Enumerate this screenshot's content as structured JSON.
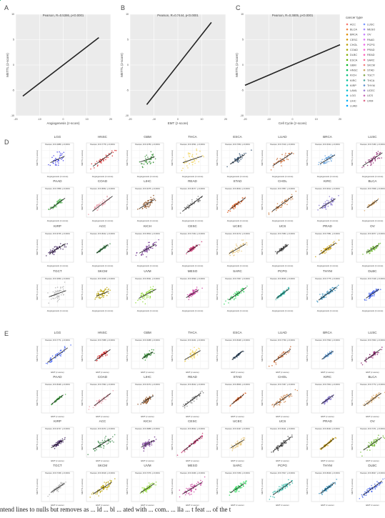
{
  "colors": {
    "ACC": "#f8766d",
    "BLCA": "#ed8141",
    "BRCA": "#e08b00",
    "CESC": "#cf9400",
    "CHOL": "#bb9d00",
    "COAD": "#a3a500",
    "DLBC": "#85ad00",
    "ESCA": "#5bb300",
    "GBM": "#00b81f",
    "HNSC": "#00bc59",
    "KICH": "#00bf7d",
    "KIRC": "#00c19c",
    "KIRP": "#00c0b7",
    "LAML": "#00bdd0",
    "LGG": "#00b8e5",
    "LIHC": "#00b0f6",
    "LUAD": "#00a5ff",
    "LUSC": "#7997ff",
    "MESO": "#a58aff",
    "OV": "#c77cff",
    "PAAD": "#df70f8",
    "PCPG": "#f066ea",
    "PRAD": "#fb61d7",
    "READ": "#ff62bc",
    "SARC": "#ff6a9a",
    "SKCM": "#f47d7d",
    "STAD": "#c9a45a",
    "TGCT": "#7fa84c",
    "THCA": "#4aa8a0",
    "THYM": "#5a8fd0",
    "UCEC": "#9b7ad6",
    "UCS": "#c96ab8",
    "UVM": "#e06a8a"
  },
  "chart_data": [
    {
      "panel": "A",
      "type": "scatter",
      "title": "Pearson, R=0.5386, p<0.0001",
      "xlabel": "Angiogenesis (z-score)",
      "ylabel": "METTL (z-score)",
      "xlim": [
        -20,
        20
      ],
      "ylim": [
        -10,
        10
      ],
      "xticks": [
        -20,
        -10,
        0,
        10,
        20
      ],
      "yticks": [
        -10,
        -5,
        0,
        5,
        10
      ],
      "fit": {
        "slope": 0.36,
        "intercept": 0.0,
        "x": [
          -17,
          15
        ]
      }
    },
    {
      "panel": "B",
      "type": "scatter",
      "title": "Pearson, R=0.7444, p<0.0001",
      "xlabel": "EMT (z-score)",
      "ylabel": "METTL (z-score)",
      "xlim": [
        -20,
        20
      ],
      "ylim": [
        -10,
        10
      ],
      "xticks": [
        -20,
        -10,
        0,
        10,
        20
      ],
      "yticks": [
        -10,
        -5,
        0,
        5,
        10
      ],
      "fit": {
        "slope": 0.6,
        "intercept": 0.0,
        "x": [
          -13,
          14
        ]
      }
    },
    {
      "panel": "C",
      "type": "scatter",
      "title": "Pearson, R=0.3805, p<0.0001",
      "xlabel": "Cell Cycle (z-score)",
      "ylabel": "METTL (z-score)",
      "xlim": [
        -20,
        20
      ],
      "ylim": [
        -10,
        10
      ],
      "xticks": [
        -20,
        -10,
        0,
        10,
        20
      ],
      "yticks": [
        -10,
        -5,
        0,
        5,
        10
      ],
      "fit": {
        "slope": 0.2,
        "intercept": 0.0,
        "x": [
          -20,
          20
        ]
      }
    }
  ],
  "legend": {
    "title": "cancer type",
    "col1": [
      "ACC",
      "BLCA",
      "BRCA",
      "CESC",
      "CHOL",
      "COAD",
      "DLBC",
      "ESCA",
      "GBM",
      "HNSC",
      "KICH",
      "KIRC",
      "KIRP",
      "LAML",
      "LGG",
      "LIHC",
      "LUAD"
    ],
    "col2": [
      "LUSC",
      "MESO",
      "OV",
      "PAAD",
      "PCPG",
      "PRAD",
      "READ",
      "SARC",
      "SKCM",
      "STAD",
      "TGCT",
      "THCA",
      "THYM",
      "UCEC",
      "UCS",
      "UVM"
    ]
  },
  "grid_D": {
    "letter": "D",
    "xlabel": "Angiogenesis (z-score)",
    "ylabel": "METTL (z-score)",
    "panels": [
      {
        "name": "LGG",
        "title": "Pearson, R=0.4888, p<0.0001",
        "color": "#3a3ae8"
      },
      {
        "name": "HNSC",
        "title": "Pearson, R=0.7778, p<0.0001",
        "color": "#d62020"
      },
      {
        "name": "GBM",
        "title": "Pearson, R=0.3780, p<0.0001",
        "color": "#2c8a2c"
      },
      {
        "name": "THCA",
        "title": "Pearson, R=0.3531, p<0.0001",
        "color": "#f0d050"
      },
      {
        "name": "ESCA",
        "title": "Pearson, R=0.7053, p<0.0001",
        "color": "#2a4a6a"
      },
      {
        "name": "LUAD",
        "title": "Pearson, R=0.7019, p<0.0001",
        "color": "#c8642a"
      },
      {
        "name": "BRCA",
        "title": "Pearson, R=0.6324, p<0.0001",
        "color": "#5a9ad8"
      },
      {
        "name": "LUSC",
        "title": "Pearson, R=0.7180, p<0.0001",
        "color": "#8a1a6a"
      },
      {
        "name": "PAAD",
        "title": "Pearson, R=0.7858, p<0.0001",
        "color": "#3aa83a"
      },
      {
        "name": "COAD",
        "title": "Pearson, R=0.8052, p<0.0001",
        "color": "#e89aa8"
      },
      {
        "name": "LIHC",
        "title": "Pearson, R=0.6375, p<0.0001",
        "color": "#8a4a1a"
      },
      {
        "name": "READ",
        "title": "Pearson, R=0.8177, p<0.0001",
        "color": "#7a7a7a"
      },
      {
        "name": "STAD",
        "title": "Pearson, R=0.8034, p<0.0001",
        "color": "#d8581a"
      },
      {
        "name": "CHOL",
        "title": "Pearson, R=0.7857, p<0.0001",
        "color": "#c8783a"
      },
      {
        "name": "KIRC",
        "title": "Pearson, R=0.6612, p<0.0001",
        "color": "#7a68c8"
      },
      {
        "name": "BLCA",
        "title": "Pearson, R=0.7848, p<0.0001",
        "color": "#d8a868"
      },
      {
        "name": "KIRP",
        "title": "Pearson, R=0.6745, p<0.0001",
        "color": "#3a1a5a"
      },
      {
        "name": "ACC",
        "title": "Pearson, R=0.8102, p<0.0001",
        "color": "#3a8a4a"
      },
      {
        "name": "KICH",
        "title": "Pearson, R=0.5813, p<0.0001",
        "color": "#6a2a8a"
      },
      {
        "name": "CESC",
        "title": "Pearson, R=0.7464, p<0.0001",
        "color": "#c82a6a"
      },
      {
        "name": "UCEC",
        "title": "Pearson, R=0.6172, p<0.0001",
        "color": "#e8c880"
      },
      {
        "name": "UCS",
        "title": "Pearson, R=0.7683, p<0.0001",
        "color": "#4a4a4a"
      },
      {
        "name": "PRAD",
        "title": "Pearson, R=0.7581, p<0.0001",
        "color": "#c89a00"
      },
      {
        "name": "OV",
        "title": "Pearson, R=0.6677, p<0.0001",
        "color": "#6ab82a"
      },
      {
        "name": "TGCT",
        "title": "Pearson, R=0.3959, p<0.0001",
        "color": "#b0b0b0"
      },
      {
        "name": "SKCM",
        "title": "Pearson, R=0.4038, p<0.0001",
        "color": "#b8a000"
      },
      {
        "name": "UVM",
        "title": "Pearson, R=0.5631, p<0.0001",
        "color": "#8ad82a"
      },
      {
        "name": "MESO",
        "title": "Pearson, R=0.6699, p<0.0001",
        "color": "#c83a9a"
      },
      {
        "name": "SARC",
        "title": "Pearson, R=0.7667, p<0.0001",
        "color": "#2ad85a"
      },
      {
        "name": "PCPG",
        "title": "Pearson, R=0.8036, p<0.0001",
        "color": "#2ab8a8"
      },
      {
        "name": "THYM",
        "title": "Pearson, R=0.7775, p<0.0001",
        "color": "#2a8ab8"
      },
      {
        "name": "DLBC",
        "title": "Pearson, R=0.7418, p<0.0001",
        "color": "#3a5ae8"
      }
    ]
  },
  "grid_E": {
    "letter": "E",
    "xlabel": "EMT (z-score)",
    "ylabel": "METTL (z-score)",
    "panels": [
      {
        "name": "LGG",
        "title": "Pearson, R=0.7771, p<0.0001",
        "color": "#3a5af8"
      },
      {
        "name": "HNSC",
        "title": "Pearson, R=0.7688, p<0.0001",
        "color": "#d62020"
      },
      {
        "name": "GBM",
        "title": "Pearson, R=0.6388, p<0.0001",
        "color": "#2c8a2c"
      },
      {
        "name": "THCA",
        "title": "Pearson, R=0.6221, p<0.0001",
        "color": "#f0d050"
      },
      {
        "name": "ESCA",
        "title": "Pearson, R=0.8428, p<0.0001",
        "color": "#2a4a6a"
      },
      {
        "name": "LUAD",
        "title": "Pearson, R=0.7799, p<0.0001",
        "color": "#c8642a"
      },
      {
        "name": "BRCA",
        "title": "Pearson, R=0.7693, p<0.0001",
        "color": "#5a9ad8"
      },
      {
        "name": "LUSC",
        "title": "Pearson, R=0.7843, p<0.0001",
        "color": "#8a1a6a"
      },
      {
        "name": "PAAD",
        "title": "Pearson, R=0.8428, p<0.0001",
        "color": "#3aa83a"
      },
      {
        "name": "COAD",
        "title": "Pearson, R=0.7993, p<0.0001",
        "color": "#e89aa8"
      },
      {
        "name": "LIHC",
        "title": "Pearson, R=0.6474, p<0.0001",
        "color": "#8a4a1a"
      },
      {
        "name": "READ",
        "title": "Pearson, R=0.8102, p<0.0001",
        "color": "#7a7a7a"
      },
      {
        "name": "STAD",
        "title": "Pearson, R=0.8606, p<0.0001",
        "color": "#d8581a"
      },
      {
        "name": "CHOL",
        "title": "Pearson, R=0.7467, p<0.0001",
        "color": "#c8783a"
      },
      {
        "name": "KIRC",
        "title": "Pearson, R=0.7604, p<0.0001",
        "color": "#7a68c8"
      },
      {
        "name": "BLCA",
        "title": "Pearson, R=0.7772, p<0.0001",
        "color": "#d8a868"
      },
      {
        "name": "KIRP",
        "title": "Pearson, R=0.6727, p<0.0001",
        "color": "#3a1a5a"
      },
      {
        "name": "ACC",
        "title": "Pearson, R=0.6473, p<0.0001",
        "color": "#3a8a4a"
      },
      {
        "name": "KICH",
        "title": "Pearson, R=0.5888, p<0.0001",
        "color": "#6a2a8a"
      },
      {
        "name": "CESC",
        "title": "Pearson, R=0.8642, p<0.0001",
        "color": "#c82a6a"
      },
      {
        "name": "UCEC",
        "title": "Pearson, R=0.6437, p<0.0001",
        "color": "#e8c880"
      },
      {
        "name": "UCS",
        "title": "Pearson, R=0.8411, p<0.0001",
        "color": "#4a4a4a"
      },
      {
        "name": "PRAD",
        "title": "Pearson, R=0.8433, p<0.0001",
        "color": "#c89a00"
      },
      {
        "name": "OV",
        "title": "Pearson, R=0.7471, p<0.0001",
        "color": "#6ab82a"
      },
      {
        "name": "TGCT",
        "title": "Pearson, R=0.7158, p<0.0001",
        "color": "#b0b0b0"
      },
      {
        "name": "SKCM",
        "title": "Pearson, R=0.6618, p<0.0001",
        "color": "#b8a000"
      },
      {
        "name": "UVM",
        "title": "Pearson, R=0.7076, p<0.0001",
        "color": "#8ad82a"
      },
      {
        "name": "MESO",
        "title": "Pearson, R=0.6466, p<0.0001",
        "color": "#c83a9a"
      },
      {
        "name": "SARC",
        "title": "Pearson, R=0.7259, p<0.0001",
        "color": "#2ad85a"
      },
      {
        "name": "PCPG",
        "title": "Pearson, R=0.7817, p<0.0001",
        "color": "#2ab8a8"
      },
      {
        "name": "THYM",
        "title": "Pearson, R=0.8049, p<0.0001",
        "color": "#2a8ab8"
      },
      {
        "name": "DLBC",
        "title": "Pearson, R=0.8027, p<0.0001",
        "color": "#3a5ae8"
      }
    ]
  },
  "caption": "ntend lines to nulls but removes as  ... ld  ... bl  ... ated with  ... com..  ... lla  ... t feat ... of the t"
}
